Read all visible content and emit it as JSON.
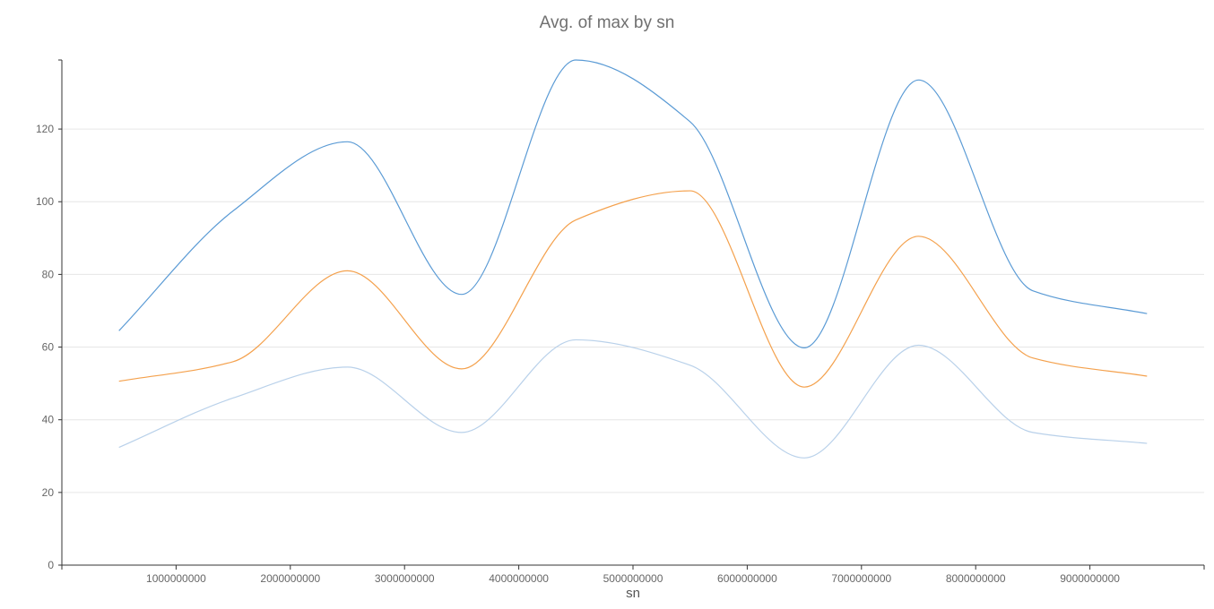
{
  "chart_data": {
    "type": "line",
    "title": "Avg. of max by sn",
    "xlabel": "sn",
    "ylabel": "",
    "x": [
      500000000,
      1500000000,
      2500000000,
      3500000000,
      4500000000,
      5500000000,
      6500000000,
      7500000000,
      8500000000,
      9500000000
    ],
    "series": [
      {
        "color": "#5b9bd5",
        "values": [
          64.5,
          97.5,
          116.5,
          74.5,
          139.0,
          122.0,
          59.8,
          133.5,
          75.5,
          69.2
        ]
      },
      {
        "color": "#f4a14d",
        "values": [
          50.6,
          56.0,
          81.0,
          54.0,
          95.0,
          103.0,
          49.0,
          90.5,
          57.0,
          52.0
        ]
      },
      {
        "color": "#b9d1ea",
        "values": [
          32.4,
          46.0,
          54.5,
          36.5,
          62.0,
          55.0,
          29.5,
          60.5,
          36.5,
          33.5
        ]
      }
    ],
    "xlim": [
      0,
      10000000000
    ],
    "ylim": [
      0,
      139
    ],
    "xticks": [
      "1000000000",
      "2000000000",
      "3000000000",
      "4000000000",
      "5000000000",
      "6000000000",
      "7000000000",
      "8000000000",
      "9000000000"
    ],
    "yticks": [
      "0",
      "20",
      "40",
      "60",
      "80",
      "100",
      "120"
    ],
    "grid": true
  }
}
